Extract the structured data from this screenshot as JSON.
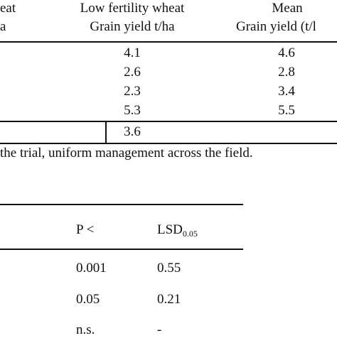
{
  "table1": {
    "header_left_line1": "eat",
    "header_left_line2": "a",
    "col_low_fertility": {
      "line1": "Low fertility wheat",
      "line2": "Grain yield t/ha"
    },
    "col_mean": {
      "line1": "Mean",
      "line2": "Grain yield (t/l"
    },
    "rows": [
      {
        "low": "4.1",
        "mean": "4.6"
      },
      {
        "low": "2.6",
        "mean": "2.8"
      },
      {
        "low": "2.3",
        "mean": "3.4"
      },
      {
        "low": "5.3",
        "mean": "5.5"
      }
    ],
    "mean_row": {
      "low": "3.6"
    }
  },
  "footnote": " the trial, uniform management across the field.",
  "table2": {
    "header_p": "P <",
    "header_lsd_main": "LSD",
    "header_lsd_sub": "0.05",
    "rows": [
      {
        "p": "0.001",
        "lsd": "0.55"
      },
      {
        "p": "0.05",
        "lsd": "0.21"
      },
      {
        "p": "n.s.",
        "lsd": "-"
      }
    ]
  }
}
